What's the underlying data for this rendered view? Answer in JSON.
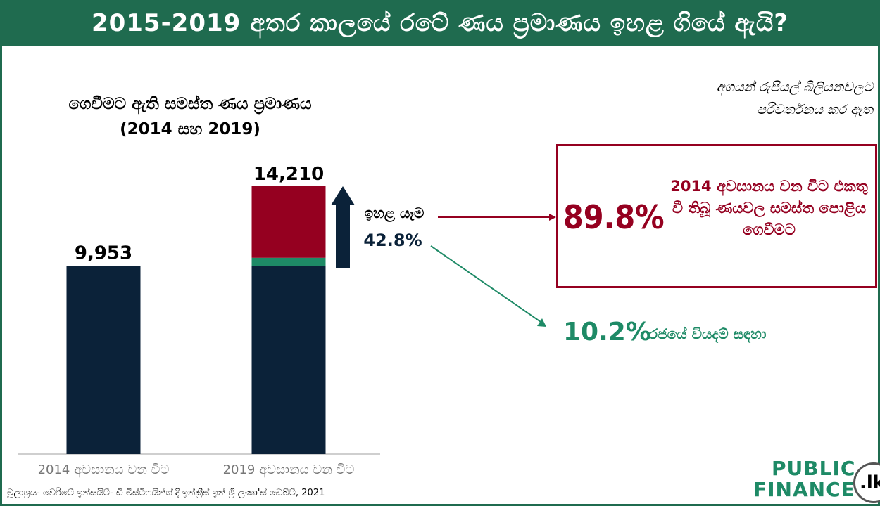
{
  "header": {
    "title": "2015-2019 අතර කාලයේ රටේ ණය ප්‍රමාණය ඉහළ ගියේ ඇයි?"
  },
  "chart_title_line1": "ගෙවීමට ඇති සමස්ත ණය ප්‍රමාණය",
  "chart_title_line2": "(2014 සහ 2019)",
  "unit_note_line1": "අගයන් රුපියල් බිලියනවලට",
  "unit_note_line2": "පරිවර්තනය කර ඇත",
  "chart_data": {
    "type": "bar",
    "categories": [
      "2014 අවසානය වන විට",
      "2019 අවසානය වන විට"
    ],
    "values": [
      9953,
      14210
    ],
    "value_labels": [
      "9,953",
      "14,210"
    ],
    "stacked_2019": [
      {
        "value": 9953
      },
      {
        "value": 433
      },
      {
        "value": 3824
      }
    ],
    "increase_label": "ඉහළ යෑම",
    "increase_pct": "42.8%",
    "colors": {
      "base": "#0b2239",
      "green": "#1e8a66",
      "red": "#950020",
      "arrow": "#0b2239"
    }
  },
  "callout": {
    "pct": "89.8%",
    "text": "2014 අවසානය වන විට එකතු වී තිබූ ණයවල සමස්ත පොළිය ගෙවීමට"
  },
  "secondary": {
    "pct": "10.2%",
    "text": "රජයේ වියදම් සඳහා"
  },
  "source": "මූලාශ්‍රය- වෙරිටේ ඉන්සයිට්- ඩි මිස්ටිෆයින්ග් දි ඉන්ක්‍රීස් ඉන් ශ්‍රී ලංකා'ස් ඩෙබ්ට්, 2021",
  "logo": {
    "line1": "PUBLIC",
    "line2": "FINANCE",
    "badge": ".lk"
  }
}
